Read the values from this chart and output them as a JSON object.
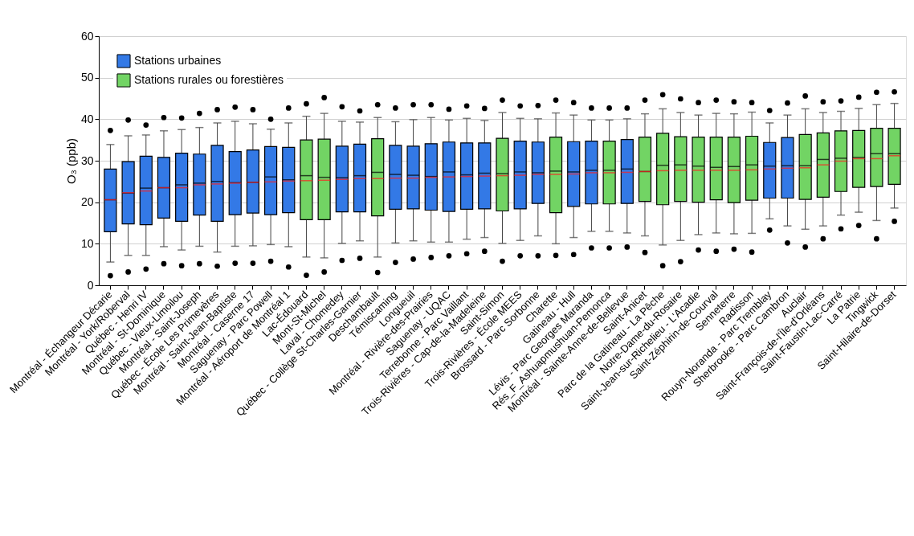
{
  "chart_data": {
    "type": "box",
    "ylabel": "O₃ (ppb)",
    "ylim": [
      0,
      60
    ],
    "yticks": [
      0,
      10,
      20,
      30,
      40,
      50,
      60
    ],
    "grid": "y",
    "legend": "top left",
    "categories": [
      "Montréal - Échangeur Décarie",
      "Montréal - York/Roberval",
      "Québec - Henri IV",
      "Montréal - St-Dominique",
      "Québec - Vieux-Limoilou",
      "Montréal - Saint-Joseph",
      "Québec - École Les Primevères",
      "Montréal - Saint-Jean-Baptiste",
      "Montréal - Caserne 17",
      "Saguenay - Parc Powell",
      "Montréal - Aéroport de Montréal 1",
      "Lac-Édouard",
      "Mont-St-Michel",
      "Laval - Chomedey",
      "Québec - Collège St-Charles-Garnier",
      "Deschambault",
      "Témiscaming",
      "Longueuil",
      "Montréal - Rivière-des-Prairies",
      "Saguenay - UQAC",
      "Terrebonne - Parc Vaillant",
      "Trois-Rivières - Cap-de-la-Madeleine",
      "Saint-Simon",
      "Trois-Rivières - École MEES",
      "Brossard - Parc Sorbonne",
      "Charette",
      "Gatineau - Hull",
      "Lévis - Parc Georges Maranda",
      "Rés_F_Ashuapmushuan-Pemonca",
      "Montréal - Sainte-Anne-de-Bellevue",
      "Saint-Anicet",
      "Parc de la Gatineau - La Pêche",
      "Notre-Dame-du-Rosaire",
      "Saint-Jean-sur-Richelieu - L'Acadie",
      "Saint-Zéphirin-de-Courval",
      "Senneterre",
      "Radisson",
      "Rouyn-Noranda - Parc Tremblay",
      "Sherbrooke - Parc Cambron",
      "Auclair",
      "Saint-François-de-l'Île-d'Orléans",
      "Saint-Faustin-Lac-Carré",
      "La Patrie",
      "Tingwick",
      "Saint-Hilaire-de-Dorset"
    ],
    "series": [
      {
        "name": "Stations urbaines",
        "color": "#3379e6",
        "boxes": [
          {
            "low": 5.6,
            "q1": 12.9,
            "median": 20.6,
            "q3": 28.0,
            "high": 33.9,
            "mean": 20.6,
            "outliers": [
              2.3,
              37.3
            ]
          },
          {
            "low": 7.2,
            "q1": 14.8,
            "median": 22.2,
            "q3": 29.8,
            "high": 36.0,
            "mean": 22.3,
            "outliers": [
              3.2,
              39.8
            ]
          },
          {
            "low": 7.2,
            "q1": 14.6,
            "median": 23.4,
            "q3": 31.1,
            "high": 36.2,
            "mean": 22.7,
            "outliers": [
              3.9,
              38.6
            ]
          },
          {
            "low": 9.3,
            "q1": 16.2,
            "median": 23.5,
            "q3": 30.8,
            "high": 37.2,
            "mean": 23.5,
            "outliers": [
              5.2,
              40.4
            ]
          },
          {
            "low": 8.5,
            "q1": 15.4,
            "median": 24.2,
            "q3": 31.8,
            "high": 37.5,
            "mean": 23.5,
            "outliers": [
              4.7,
              40.3
            ]
          },
          {
            "low": 9.4,
            "q1": 16.9,
            "median": 24.6,
            "q3": 31.6,
            "high": 38.0,
            "mean": 24.2,
            "outliers": [
              5.2,
              41.4
            ]
          },
          {
            "low": 8.0,
            "q1": 15.4,
            "median": 25.0,
            "q3": 33.7,
            "high": 39.1,
            "mean": 24.4,
            "outliers": [
              4.6,
              42.3
            ]
          },
          {
            "low": 9.4,
            "q1": 17.0,
            "median": 24.7,
            "q3": 32.2,
            "high": 39.5,
            "mean": 24.6,
            "outliers": [
              5.3,
              42.9
            ]
          },
          {
            "low": 9.5,
            "q1": 17.4,
            "median": 24.8,
            "q3": 32.6,
            "high": 38.9,
            "mean": 24.8,
            "outliers": [
              5.3,
              42.3
            ]
          },
          {
            "low": 9.8,
            "q1": 17.0,
            "median": 26.1,
            "q3": 33.4,
            "high": 37.6,
            "mean": 24.9,
            "outliers": [
              5.8,
              40.0
            ]
          },
          {
            "low": 9.3,
            "q1": 17.5,
            "median": 25.4,
            "q3": 33.2,
            "high": 39.1,
            "mean": 25.1,
            "outliers": [
              4.4,
              42.7
            ]
          },
          null,
          null,
          {
            "low": 10.1,
            "q1": 17.7,
            "median": 25.9,
            "q3": 33.5,
            "high": 39.5,
            "mean": 25.5,
            "outliers": [
              6.0,
              43.0
            ]
          },
          {
            "low": 10.7,
            "q1": 17.7,
            "median": 26.4,
            "q3": 34.0,
            "high": 39.3,
            "mean": 25.7,
            "outliers": [
              6.5,
              42.0
            ]
          },
          null,
          {
            "low": 10.2,
            "q1": 18.3,
            "median": 26.7,
            "q3": 33.7,
            "high": 39.4,
            "mean": 25.8,
            "outliers": [
              5.5,
              42.7
            ]
          },
          {
            "low": 10.7,
            "q1": 18.4,
            "median": 26.5,
            "q3": 33.5,
            "high": 39.9,
            "mean": 25.8,
            "outliers": [
              6.3,
              43.5
            ]
          },
          {
            "low": 10.4,
            "q1": 18.1,
            "median": 26.2,
            "q3": 34.1,
            "high": 40.4,
            "mean": 26.0,
            "outliers": [
              6.7,
              43.5
            ]
          },
          {
            "low": 10.4,
            "q1": 17.8,
            "median": 27.3,
            "q3": 34.5,
            "high": 39.8,
            "mean": 26.1,
            "outliers": [
              7.1,
              42.4
            ]
          },
          {
            "low": 11.1,
            "q1": 18.3,
            "median": 26.6,
            "q3": 34.3,
            "high": 40.2,
            "mean": 26.2,
            "outliers": [
              7.6,
              43.2
            ]
          },
          {
            "low": 11.5,
            "q1": 18.4,
            "median": 27.0,
            "q3": 34.3,
            "high": 39.7,
            "mean": 26.3,
            "outliers": [
              8.2,
              42.6
            ]
          },
          null,
          {
            "low": 10.8,
            "q1": 18.4,
            "median": 27.3,
            "q3": 34.7,
            "high": 40.2,
            "mean": 26.5,
            "outliers": [
              7.1,
              43.2
            ]
          },
          {
            "low": 11.9,
            "q1": 19.7,
            "median": 27.1,
            "q3": 34.5,
            "high": 40.1,
            "mean": 26.7,
            "outliers": [
              7.1,
              43.3
            ]
          },
          null,
          {
            "low": 11.5,
            "q1": 19.0,
            "median": 27.3,
            "q3": 34.6,
            "high": 41.0,
            "mean": 26.8,
            "outliers": [
              7.4,
              44.0
            ]
          },
          {
            "low": 13.0,
            "q1": 19.6,
            "median": 27.7,
            "q3": 34.7,
            "high": 39.8,
            "mean": 27.1,
            "outliers": [
              9.0,
              42.7
            ]
          },
          null,
          {
            "low": 12.6,
            "q1": 19.7,
            "median": 28.0,
            "q3": 35.1,
            "high": 40.1,
            "mean": 27.2,
            "outliers": [
              9.2,
              42.7
            ]
          },
          null,
          null,
          null,
          null,
          null,
          null,
          null,
          {
            "low": 16.0,
            "q1": 21.0,
            "median": 28.7,
            "q3": 34.4,
            "high": 39.1,
            "mean": 28.0,
            "outliers": [
              13.3,
              42.1
            ]
          },
          {
            "low": 14.3,
            "q1": 21.0,
            "median": 28.8,
            "q3": 35.6,
            "high": 41.0,
            "mean": 28.2,
            "outliers": [
              10.2,
              43.9
            ]
          },
          null,
          null,
          null,
          null,
          null,
          null
        ]
      },
      {
        "name": "Stations rurales ou forestières",
        "color": "#72d464",
        "boxes": [
          null,
          null,
          null,
          null,
          null,
          null,
          null,
          null,
          null,
          null,
          null,
          {
            "low": 6.8,
            "q1": 15.8,
            "median": 26.4,
            "q3": 35.0,
            "high": 40.7,
            "mean": 25.2,
            "outliers": [
              2.4,
              43.7
            ]
          },
          {
            "low": 6.6,
            "q1": 15.8,
            "median": 26.0,
            "q3": 35.2,
            "high": 41.4,
            "mean": 25.3,
            "outliers": [
              3.2,
              45.2
            ]
          },
          null,
          null,
          {
            "low": 6.8,
            "q1": 16.7,
            "median": 27.2,
            "q3": 35.3,
            "high": 40.4,
            "mean": 25.7,
            "outliers": [
              3.1,
              43.5
            ]
          },
          null,
          null,
          null,
          null,
          null,
          null,
          {
            "low": 10.1,
            "q1": 17.9,
            "median": 26.9,
            "q3": 35.4,
            "high": 41.6,
            "mean": 26.4,
            "outliers": [
              5.8,
              44.6
            ]
          },
          null,
          null,
          {
            "low": 10.0,
            "q1": 17.5,
            "median": 27.5,
            "q3": 35.7,
            "high": 41.5,
            "mean": 26.7,
            "outliers": [
              7.2,
              44.6
            ]
          },
          null,
          null,
          {
            "low": 13.0,
            "q1": 19.6,
            "median": 27.7,
            "q3": 34.7,
            "high": 39.8,
            "mean": 27.1,
            "outliers": [
              9.0,
              42.7
            ]
          },
          null,
          {
            "low": 11.9,
            "q1": 20.2,
            "median": 27.4,
            "q3": 35.7,
            "high": 41.3,
            "mean": 27.4,
            "outliers": [
              7.9,
              44.6
            ]
          },
          {
            "low": 9.7,
            "q1": 19.4,
            "median": 28.9,
            "q3": 36.6,
            "high": 42.5,
            "mean": 27.6,
            "outliers": [
              4.7,
              45.9
            ]
          },
          {
            "low": 10.8,
            "q1": 20.2,
            "median": 29.0,
            "q3": 35.8,
            "high": 41.6,
            "mean": 27.7,
            "outliers": [
              5.7,
              44.9
            ]
          },
          {
            "low": 12.2,
            "q1": 20.0,
            "median": 28.7,
            "q3": 35.7,
            "high": 41.0,
            "mean": 27.7,
            "outliers": [
              8.5,
              44.0
            ]
          },
          {
            "low": 12.6,
            "q1": 20.6,
            "median": 28.4,
            "q3": 35.7,
            "high": 41.4,
            "mean": 27.7,
            "outliers": [
              8.2,
              44.6
            ]
          },
          {
            "low": 12.4,
            "q1": 19.9,
            "median": 28.6,
            "q3": 35.7,
            "high": 41.3,
            "mean": 27.7,
            "outliers": [
              8.7,
              44.2
            ]
          },
          {
            "low": 12.5,
            "q1": 20.5,
            "median": 29.0,
            "q3": 35.9,
            "high": 41.7,
            "mean": 27.8,
            "outliers": [
              8.0,
              44.0
            ]
          },
          null,
          null,
          {
            "low": 13.5,
            "q1": 20.7,
            "median": 28.8,
            "q3": 36.3,
            "high": 42.5,
            "mean": 28.3,
            "outliers": [
              9.2,
              45.6
            ]
          },
          {
            "low": 14.3,
            "q1": 21.2,
            "median": 30.3,
            "q3": 36.7,
            "high": 41.6,
            "mean": 29.0,
            "outliers": [
              11.2,
              44.2
            ]
          },
          {
            "low": 16.9,
            "q1": 22.6,
            "median": 30.6,
            "q3": 37.2,
            "high": 41.9,
            "mean": 29.9,
            "outliers": [
              13.6,
              44.4
            ]
          },
          {
            "low": 17.6,
            "q1": 23.6,
            "median": 30.8,
            "q3": 37.3,
            "high": 42.6,
            "mean": 30.5,
            "outliers": [
              14.4,
              45.3
            ]
          },
          {
            "low": 15.6,
            "q1": 23.8,
            "median": 31.7,
            "q3": 37.8,
            "high": 43.5,
            "mean": 30.5,
            "outliers": [
              11.2,
              46.5
            ]
          },
          {
            "low": 18.6,
            "q1": 24.3,
            "median": 31.7,
            "q3": 37.8,
            "high": 43.8,
            "mean": 31.2,
            "outliers": [
              15.4,
              46.6
            ]
          }
        ]
      }
    ]
  }
}
